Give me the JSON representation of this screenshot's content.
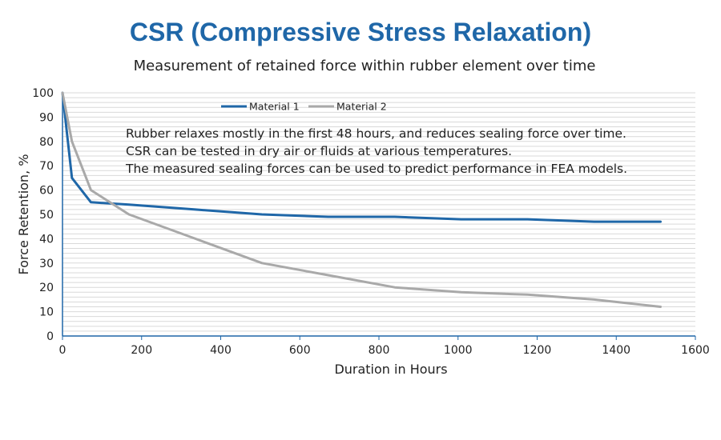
{
  "title": "CSR (Compressive Stress Relaxation)",
  "subtitle": "Measurement of retained force within rubber element over time",
  "annotations": [
    "Rubber relaxes mostly in the first 48 hours, and reduces sealing force over time.",
    "CSR can be tested in dry air or fluids at various temperatures.",
    "The measured sealing forces can be used to predict performance in FEA models."
  ],
  "colors": {
    "title": "#1f67a8",
    "material_1": "#1f67a8",
    "material_2": "#a9a9a9",
    "grid": "#d9d9d9",
    "axis": "#1f67a8"
  },
  "chart_data": {
    "type": "line",
    "title": "CSR (Compressive Stress Relaxation)",
    "subtitle": "Measurement of retained force within rubber element over time",
    "xlabel": "Duration in Hours",
    "ylabel": "Force Retention, %",
    "xlim": [
      0,
      1600
    ],
    "ylim": [
      0,
      100
    ],
    "xticks": [
      0,
      200,
      400,
      600,
      800,
      1000,
      1200,
      1400,
      1600
    ],
    "yticks": [
      0,
      10,
      20,
      30,
      40,
      50,
      60,
      70,
      80,
      90,
      100
    ],
    "grid": true,
    "legend_position": "top",
    "series": [
      {
        "name": "Material 1",
        "color": "#1f67a8",
        "x": [
          0,
          24,
          72,
          168,
          336,
          504,
          672,
          840,
          1008,
          1176,
          1344,
          1512
        ],
        "y": [
          100,
          65,
          55,
          54,
          52,
          50,
          49,
          49,
          48,
          48,
          47,
          47
        ]
      },
      {
        "name": "Material 2",
        "color": "#a9a9a9",
        "x": [
          0,
          24,
          72,
          168,
          336,
          504,
          672,
          840,
          1008,
          1176,
          1344,
          1512
        ],
        "y": [
          100,
          80,
          60,
          50,
          40,
          30,
          25,
          20,
          18,
          17,
          15,
          12
        ]
      }
    ]
  }
}
